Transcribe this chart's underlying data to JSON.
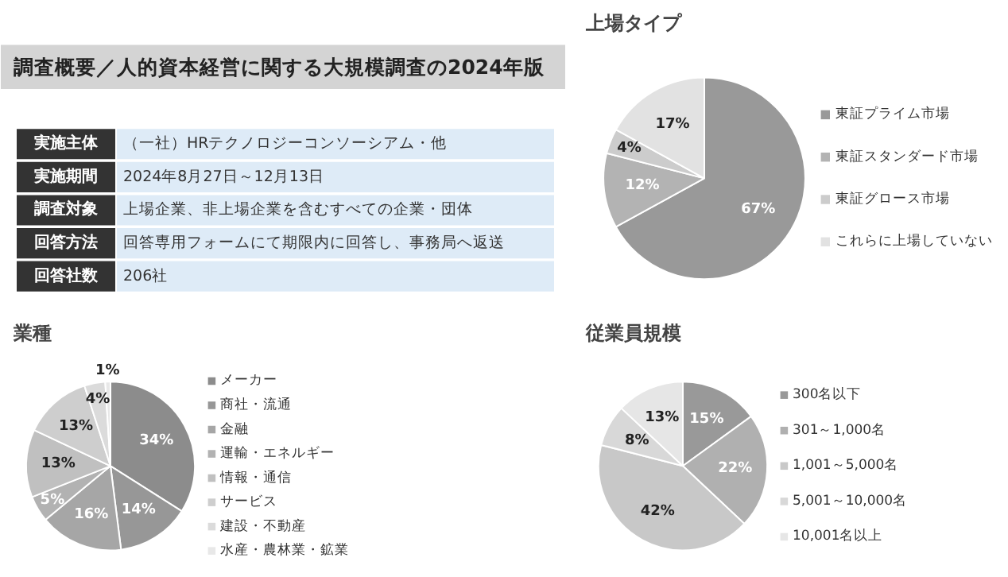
{
  "chart_data": [
    {
      "type": "other",
      "title": "調査概要／人的資本経営に関する大規模調査の2024年版",
      "categories": [
        "実施主体",
        "実施期間",
        "調査対象",
        "回答方法",
        "回答社数"
      ],
      "annotations": [
        "（一社）HRテクノロジーコンソーシアム・他",
        "2024年8月27日～12月13日",
        "上場企業、非上場企業を含むすべての企業・団体",
        "回答専用フォームにて期限内に回答し、事務局へ返送",
        "206社"
      ]
    },
    {
      "type": "pie",
      "title": "上場タイプ",
      "categories": [
        "東証プライム市場",
        "東証スタンダード市場",
        "東証グロース市場",
        "これらに上場していない"
      ],
      "values": [
        67,
        12,
        4,
        17
      ],
      "colors": [
        "#999999",
        "#b3b3b3",
        "#cccccc",
        "#e2e2e2"
      ],
      "value_labels": [
        "67%",
        "12%",
        "4%",
        "17%"
      ],
      "legend": "right"
    },
    {
      "type": "pie",
      "title": "業種",
      "categories": [
        "メーカー",
        "商社・流通",
        "金融",
        "運輸・エネルギー",
        "情報・通信",
        "サービス",
        "建設・不動産",
        "水産・農林業・鉱業"
      ],
      "values": [
        34,
        14,
        16,
        5,
        13,
        13,
        4,
        1
      ],
      "colors": [
        "#8c8c8c",
        "#979797",
        "#a6a6a6",
        "#b2b2b2",
        "#c0c0c0",
        "#cecece",
        "#dbdbdb",
        "#e8e8e8"
      ],
      "value_labels": [
        "34%",
        "14%",
        "16%",
        "5%",
        "13%",
        "13%",
        "4%",
        "1%"
      ],
      "legend": "right"
    },
    {
      "type": "pie",
      "title": "従業員規模",
      "categories": [
        "300名以下",
        "301～1,000名",
        "1,001～5,000名",
        "5,001～10,000名",
        "10,001名以上"
      ],
      "values": [
        15,
        22,
        42,
        8,
        13
      ],
      "colors": [
        "#999999",
        "#b0b0b0",
        "#c8c8c8",
        "#d8d8d8",
        "#e6e6e6"
      ],
      "value_labels": [
        "15%",
        "22%",
        "42%",
        "8%",
        "13%"
      ],
      "legend": "right"
    }
  ]
}
